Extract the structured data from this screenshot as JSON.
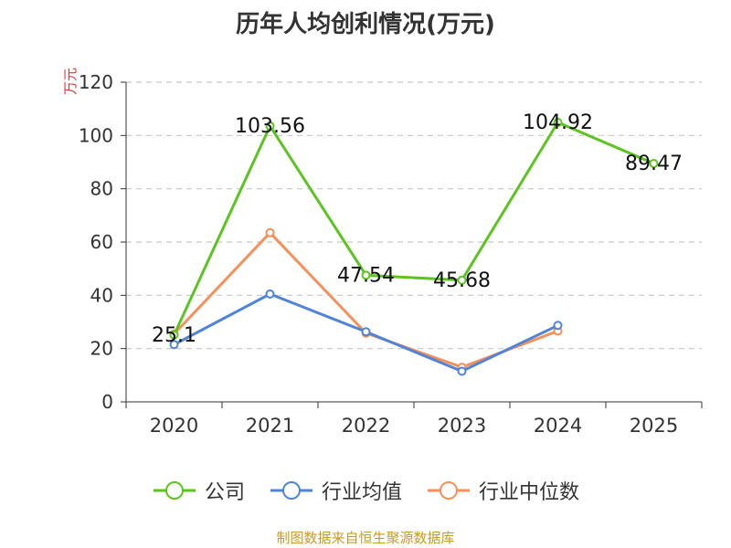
{
  "chart_data": {
    "type": "line",
    "title": "历年人均创利情况(万元)",
    "ylabel": "万元",
    "ylim": [
      0,
      120
    ],
    "yticks": [
      0,
      20,
      40,
      60,
      80,
      100,
      120
    ],
    "categories": [
      "2020",
      "2021",
      "2022",
      "2023",
      "2024",
      "2025"
    ],
    "grid": true,
    "legend_position": "bottom",
    "series": [
      {
        "name": "公司",
        "color": "#5cc41f",
        "values": [
          25.1,
          103.56,
          47.54,
          45.68,
          104.92,
          89.47
        ],
        "show_labels": true
      },
      {
        "name": "行业均值",
        "color": "#4f84d8",
        "values": [
          21.5,
          40.5,
          26.3,
          11.5,
          28.7,
          null
        ],
        "show_labels": false
      },
      {
        "name": "行业中位数",
        "color": "#f6905a",
        "values": [
          25.5,
          63.5,
          25.8,
          13.0,
          26.6,
          null
        ],
        "show_labels": false
      }
    ]
  },
  "footer": "制图数据来自恒生聚源数据库"
}
